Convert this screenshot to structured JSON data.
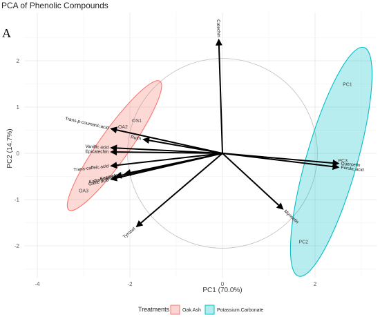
{
  "chart_data": {
    "type": "scatter",
    "panel_label": "A",
    "title": "PCA of Phenolic Compounds",
    "xlabel": "PC1 (70.0%)",
    "ylabel": "PC2 (14.7%)",
    "xlim": [
      -4.4,
      3.4
    ],
    "ylim": [
      -2.5,
      2.6
    ],
    "x_ticks": [
      -4,
      -2,
      0,
      2
    ],
    "y_ticks": [
      -2,
      -1,
      0,
      1,
      2
    ],
    "grid": true,
    "correlation_circle_radius": 2.05,
    "legend": {
      "title": "Treatments",
      "position": "bottom",
      "entries": [
        {
          "label": "Oak.Ash",
          "color": "#F8766D"
        },
        {
          "label": "Potassium.Carbonate",
          "color": "#00BFC4"
        }
      ]
    },
    "loadings": [
      {
        "name": "Catechin",
        "x": -0.08,
        "y": 2.45
      },
      {
        "name": "Trans-p-coumaric.acid",
        "x": -2.4,
        "y": 0.53
      },
      {
        "name": "Rutin",
        "x": -1.7,
        "y": 0.3
      },
      {
        "name": "Vanillic acid",
        "x": -2.4,
        "y": 0.12
      },
      {
        "name": "Epicatechin",
        "x": -2.4,
        "y": 0.03
      },
      {
        "name": "Trans-caffeic.acid",
        "x": -2.4,
        "y": -0.27
      },
      {
        "name": "Kaempferol",
        "x": -2.1,
        "y": -0.44
      },
      {
        "name": "Kaftaric.acid",
        "x": -2.3,
        "y": -0.5
      },
      {
        "name": "Gallic acid",
        "x": -2.4,
        "y": -0.56
      },
      {
        "name": "Tyrosol",
        "x": -1.85,
        "y": -1.58
      },
      {
        "name": "Myricetin",
        "x": 1.3,
        "y": -1.2
      },
      {
        "name": "Quercetin",
        "x": 2.5,
        "y": -0.22
      },
      {
        "name": "Ferulic.acid",
        "x": 2.5,
        "y": -0.3
      }
    ],
    "samples": [
      {
        "name": "OS1",
        "x": -1.85,
        "y": 0.72,
        "group": "Oak.Ash"
      },
      {
        "name": "OA2",
        "x": -2.15,
        "y": 0.58,
        "group": "Oak.Ash"
      },
      {
        "name": "OA3",
        "x": -3.0,
        "y": -0.8,
        "group": "Oak.Ash"
      },
      {
        "name": "PC1",
        "x": 2.7,
        "y": 1.5,
        "group": "Potassium.Carbonate"
      },
      {
        "name": "PC2",
        "x": 1.75,
        "y": -1.9,
        "group": "Potassium.Carbonate"
      },
      {
        "name": "PC3",
        "x": 2.6,
        "y": -0.15,
        "group": "Potassium.Carbonate"
      }
    ]
  }
}
